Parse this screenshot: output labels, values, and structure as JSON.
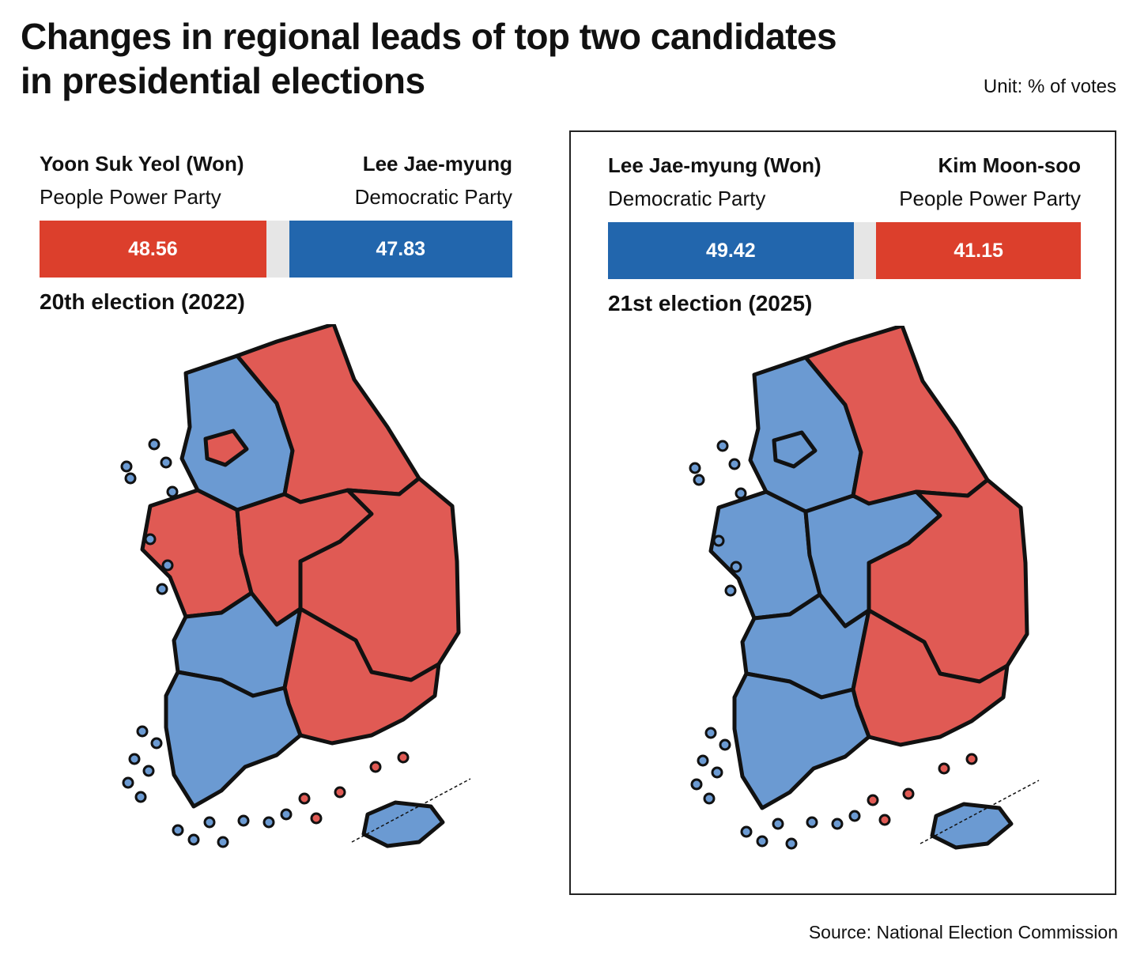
{
  "header": {
    "title_line1": "Changes in regional leads of top two candidates",
    "title_line2": "in presidential elections",
    "unit": "Unit: % of votes"
  },
  "colors": {
    "ppp_red": "#dc3f2c",
    "dem_blue": "#2266ad",
    "map_red": "#e05a54",
    "map_blue": "#6b9ad2",
    "gap_gray": "#e6e6e6"
  },
  "elections": [
    {
      "label": "20th election (2022)",
      "left": {
        "name": "Yoon Suk Yeol (Won)",
        "party": "People Power Party",
        "value": 48.56,
        "value_text": "48.56",
        "color": "#dc3f2c"
      },
      "right": {
        "name": "Lee Jae-myung",
        "party": "Democratic Party",
        "value": 47.83,
        "value_text": "47.83",
        "color": "#2266ad"
      },
      "region_leads": {
        "north_west": "blue",
        "capital_inner": "red",
        "north_east": "red",
        "center_west": "red",
        "center": "red",
        "east": "red",
        "south_east": "red",
        "south_west_upper": "blue",
        "south_west": "blue",
        "jeju": "blue"
      }
    },
    {
      "label": "21st election (2025)",
      "left": {
        "name": "Lee Jae-myung (Won)",
        "party": "Democratic Party",
        "value": 49.42,
        "value_text": "49.42",
        "color": "#2266ad"
      },
      "right": {
        "name": "Kim Moon-soo",
        "party": "People Power Party",
        "value": 41.15,
        "value_text": "41.15",
        "color": "#dc3f2c"
      },
      "region_leads": {
        "north_west": "blue",
        "capital_inner": "blue",
        "north_east": "red",
        "center_west": "blue",
        "center": "blue",
        "east": "red",
        "south_east": "red",
        "south_west_upper": "blue",
        "south_west": "blue",
        "jeju": "blue"
      }
    }
  ],
  "source": "Source: National Election Commission"
}
